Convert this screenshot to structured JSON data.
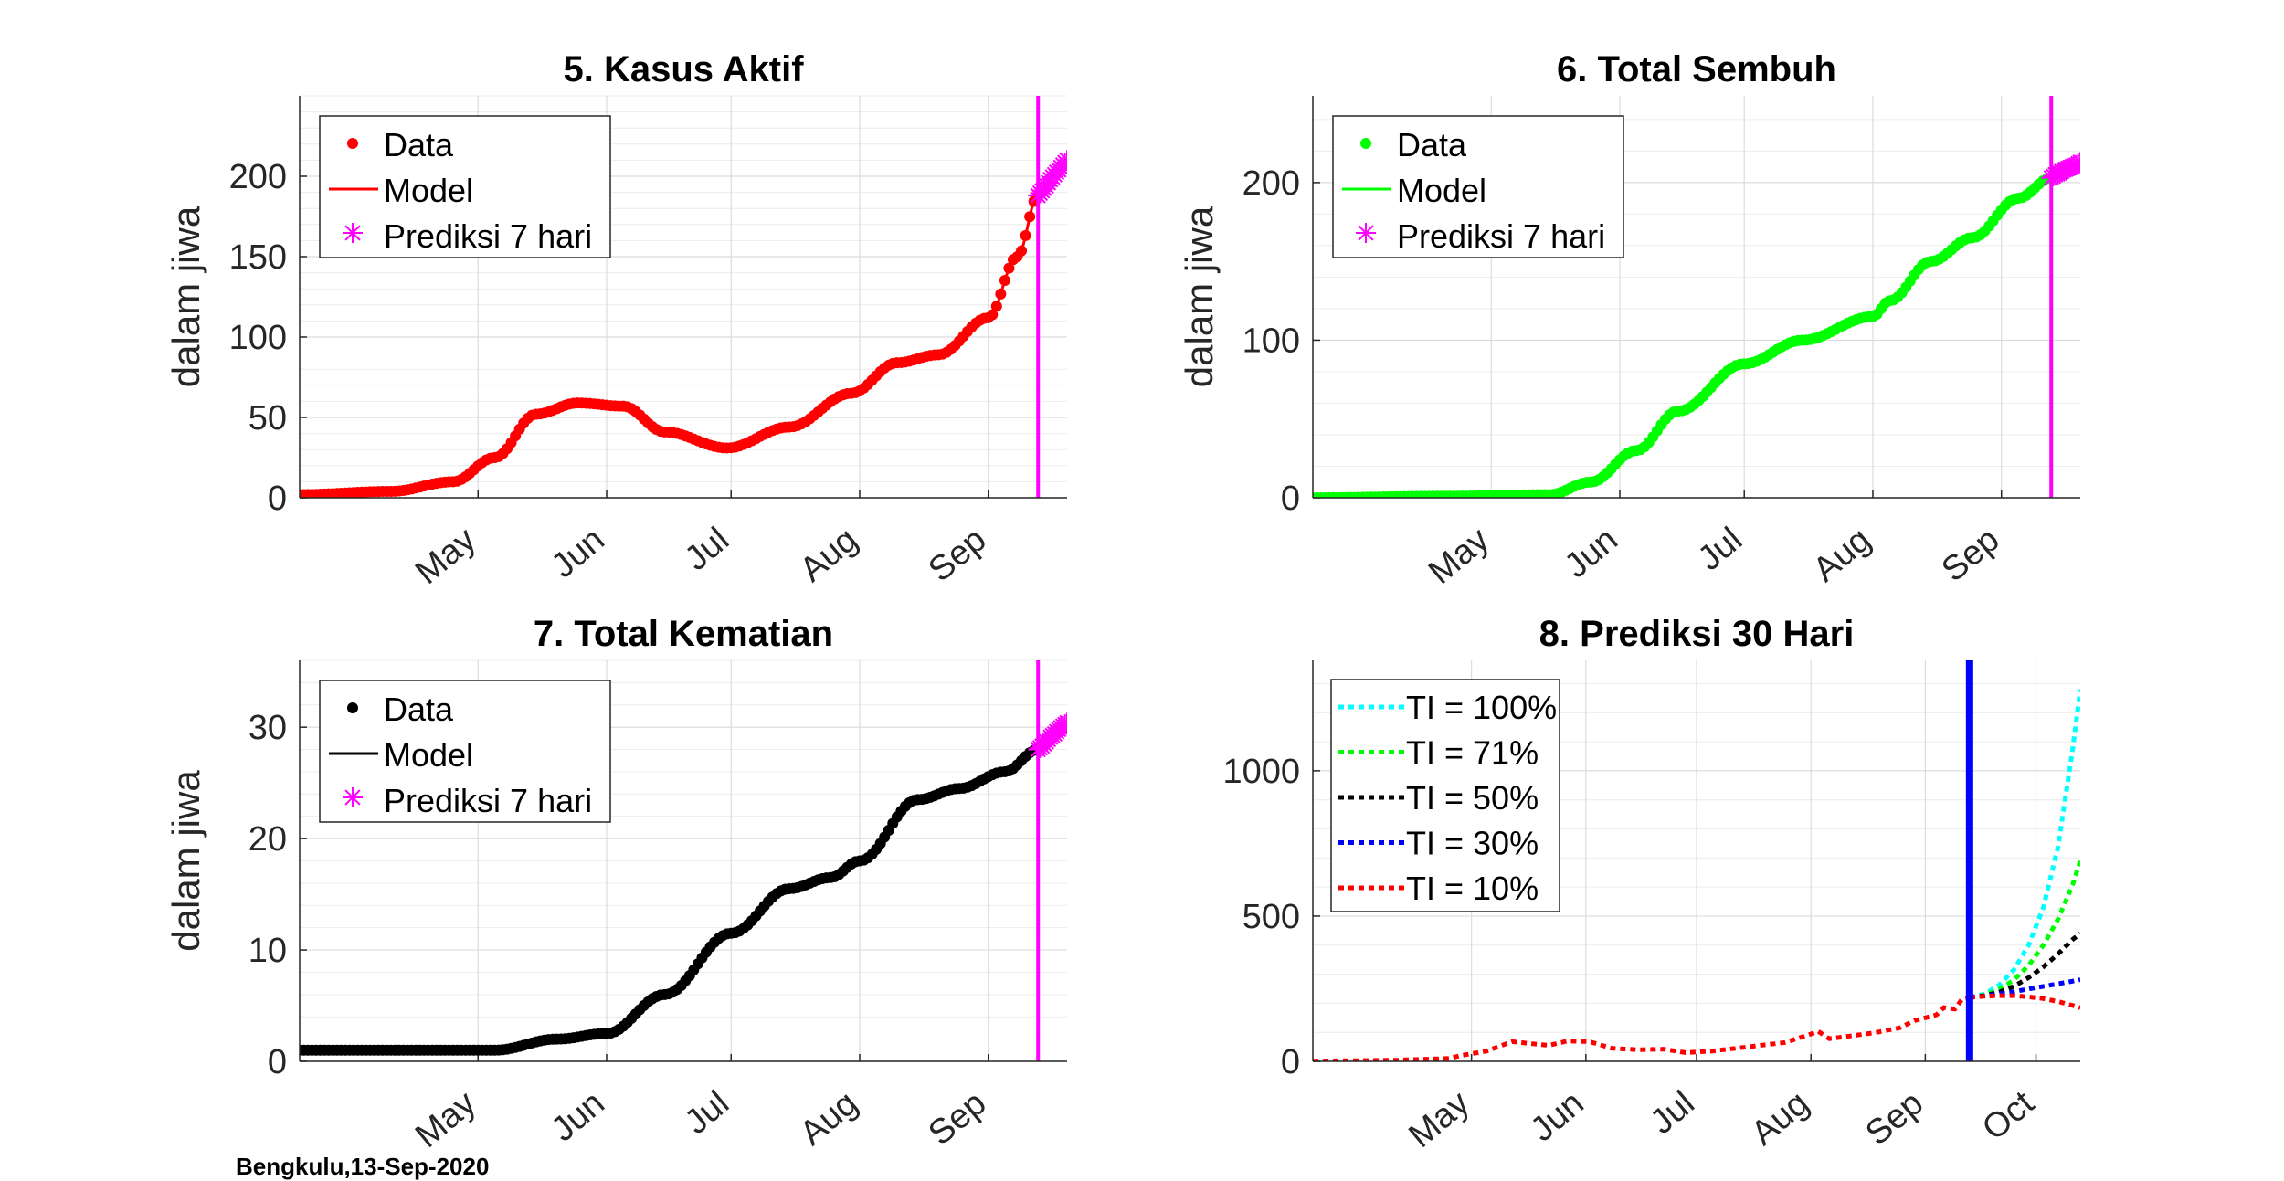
{
  "footer": "Bengkulu,13-Sep-2020",
  "chart_data": [
    {
      "type": "line",
      "title": "5. Kasus Aktif",
      "ylabel": "dalam jiwa",
      "xlabel": "",
      "x_range": [
        "2020-03-19",
        "2020-09-20"
      ],
      "ylim": [
        0,
        250
      ],
      "yticks": [
        0,
        50,
        100,
        150,
        200
      ],
      "xticks": [
        {
          "date": "2020-05-01",
          "label": "May"
        },
        {
          "date": "2020-06-01",
          "label": "Jun"
        },
        {
          "date": "2020-07-01",
          "label": "Jul"
        },
        {
          "date": "2020-08-01",
          "label": "Aug"
        },
        {
          "date": "2020-09-01",
          "label": "Sep"
        }
      ],
      "grid": true,
      "legend_position": "top-left",
      "color": "#ff0000",
      "marker_color": "#ff00ff",
      "vline_date": "2020-09-13",
      "vline_color": "#ff00ff",
      "series": [
        {
          "name": "Data",
          "style": "dot"
        },
        {
          "name": "Model",
          "style": "line"
        },
        {
          "name": "Prediksi 7 hari",
          "style": "star"
        }
      ],
      "data_anchors": [
        [
          "2020-03-19",
          2
        ],
        [
          "2020-04-10",
          4
        ],
        [
          "2020-04-25",
          10
        ],
        [
          "2020-05-05",
          25
        ],
        [
          "2020-05-15",
          52
        ],
        [
          "2020-05-25",
          59
        ],
        [
          "2020-06-05",
          57
        ],
        [
          "2020-06-15",
          41
        ],
        [
          "2020-06-30",
          31
        ],
        [
          "2020-07-15",
          44
        ],
        [
          "2020-07-30",
          65
        ],
        [
          "2020-08-10",
          84
        ],
        [
          "2020-08-20",
          89
        ],
        [
          "2020-09-01",
          112
        ],
        [
          "2020-09-08",
          150
        ],
        [
          "2020-09-13",
          188
        ]
      ],
      "prediction": [
        [
          "2020-09-13",
          188
        ],
        [
          "2020-09-14",
          191
        ],
        [
          "2020-09-15",
          194
        ],
        [
          "2020-09-16",
          198
        ],
        [
          "2020-09-17",
          201
        ],
        [
          "2020-09-18",
          204
        ],
        [
          "2020-09-19",
          207
        ],
        [
          "2020-09-20",
          210
        ]
      ]
    },
    {
      "type": "line",
      "title": "6. Total Sembuh",
      "ylabel": "dalam jiwa",
      "xlabel": "",
      "x_range": [
        "2020-03-19",
        "2020-09-20"
      ],
      "ylim": [
        0,
        255
      ],
      "yticks": [
        0,
        100,
        200
      ],
      "xticks": [
        {
          "date": "2020-05-01",
          "label": "May"
        },
        {
          "date": "2020-06-01",
          "label": "Jun"
        },
        {
          "date": "2020-07-01",
          "label": "Jul"
        },
        {
          "date": "2020-08-01",
          "label": "Aug"
        },
        {
          "date": "2020-09-01",
          "label": "Sep"
        }
      ],
      "grid": true,
      "legend_position": "top-left",
      "color": "#00ff00",
      "marker_color": "#ff00ff",
      "vline_date": "2020-09-13",
      "vline_color": "#ff00ff",
      "series": [
        {
          "name": "Data",
          "style": "dot"
        },
        {
          "name": "Model",
          "style": "line"
        },
        {
          "name": "Prediksi 7 hari",
          "style": "star"
        }
      ],
      "data_anchors": [
        [
          "2020-03-19",
          0
        ],
        [
          "2020-04-20",
          1
        ],
        [
          "2020-05-15",
          2
        ],
        [
          "2020-05-25",
          10
        ],
        [
          "2020-06-05",
          30
        ],
        [
          "2020-06-15",
          55
        ],
        [
          "2020-07-01",
          85
        ],
        [
          "2020-07-15",
          100
        ],
        [
          "2020-08-01",
          115
        ],
        [
          "2020-08-05",
          125
        ],
        [
          "2020-08-15",
          150
        ],
        [
          "2020-08-25",
          165
        ],
        [
          "2020-09-05",
          190
        ],
        [
          "2020-09-13",
          203
        ]
      ],
      "prediction": [
        [
          "2020-09-13",
          203
        ],
        [
          "2020-09-14",
          205
        ],
        [
          "2020-09-15",
          206
        ],
        [
          "2020-09-16",
          208
        ],
        [
          "2020-09-17",
          209
        ],
        [
          "2020-09-18",
          210
        ],
        [
          "2020-09-19",
          211
        ],
        [
          "2020-09-20",
          213
        ]
      ]
    },
    {
      "type": "line",
      "title": "7. Total Kematian",
      "ylabel": "dalam jiwa",
      "xlabel": "",
      "x_range": [
        "2020-03-19",
        "2020-09-20"
      ],
      "ylim": [
        0,
        36
      ],
      "yticks": [
        0,
        10,
        20,
        30
      ],
      "xticks": [
        {
          "date": "2020-05-01",
          "label": "May"
        },
        {
          "date": "2020-06-01",
          "label": "Jun"
        },
        {
          "date": "2020-07-01",
          "label": "Jul"
        },
        {
          "date": "2020-08-01",
          "label": "Aug"
        },
        {
          "date": "2020-09-01",
          "label": "Sep"
        }
      ],
      "grid": true,
      "legend_position": "top-left",
      "color": "#000000",
      "marker_color": "#ff00ff",
      "vline_date": "2020-09-13",
      "vline_color": "#ff00ff",
      "series": [
        {
          "name": "Data",
          "style": "dot"
        },
        {
          "name": "Model",
          "style": "line"
        },
        {
          "name": "Prediksi 7 hari",
          "style": "star"
        }
      ],
      "data_anchors": [
        [
          "2020-03-19",
          1
        ],
        [
          "2020-05-05",
          1
        ],
        [
          "2020-05-20",
          2
        ],
        [
          "2020-06-01",
          2.5
        ],
        [
          "2020-06-15",
          6
        ],
        [
          "2020-07-01",
          11.5
        ],
        [
          "2020-07-15",
          15.5
        ],
        [
          "2020-07-25",
          16.5
        ],
        [
          "2020-08-01",
          18
        ],
        [
          "2020-08-15",
          23.5
        ],
        [
          "2020-08-25",
          24.5
        ],
        [
          "2020-09-05",
          26
        ],
        [
          "2020-09-13",
          28
        ]
      ],
      "prediction": [
        [
          "2020-09-13",
          28
        ],
        [
          "2020-09-14",
          28.3
        ],
        [
          "2020-09-15",
          28.7
        ],
        [
          "2020-09-16",
          29.1
        ],
        [
          "2020-09-17",
          29.4
        ],
        [
          "2020-09-18",
          29.8
        ],
        [
          "2020-09-19",
          30.1
        ],
        [
          "2020-09-20",
          30.4
        ]
      ]
    },
    {
      "type": "line",
      "title": "8. Prediksi 30 Hari",
      "ylabel": "",
      "xlabel": "",
      "x_range": [
        "2020-03-19",
        "2020-10-13"
      ],
      "ylim": [
        0,
        1380
      ],
      "yticks": [
        0,
        500,
        1000
      ],
      "xticks": [
        {
          "date": "2020-05-01",
          "label": "May"
        },
        {
          "date": "2020-06-01",
          "label": "Jun"
        },
        {
          "date": "2020-07-01",
          "label": "Jul"
        },
        {
          "date": "2020-08-01",
          "label": "Aug"
        },
        {
          "date": "2020-09-01",
          "label": "Sep"
        },
        {
          "date": "2020-10-01",
          "label": "Oct"
        }
      ],
      "grid": true,
      "legend_position": "top-left",
      "vline_date": "2020-09-13",
      "vline_color": "#0000ff",
      "history": [
        [
          "2020-03-19",
          1
        ],
        [
          "2020-04-10",
          4
        ],
        [
          "2020-04-25",
          10
        ],
        [
          "2020-04-28",
          20
        ],
        [
          "2020-05-05",
          35
        ],
        [
          "2020-05-12",
          68
        ],
        [
          "2020-05-18",
          60
        ],
        [
          "2020-05-22",
          55
        ],
        [
          "2020-05-27",
          70
        ],
        [
          "2020-06-02",
          68
        ],
        [
          "2020-06-08",
          45
        ],
        [
          "2020-06-15",
          40
        ],
        [
          "2020-06-22",
          42
        ],
        [
          "2020-06-28",
          30
        ],
        [
          "2020-07-05",
          35
        ],
        [
          "2020-07-15",
          50
        ],
        [
          "2020-07-25",
          65
        ],
        [
          "2020-07-31",
          90
        ],
        [
          "2020-08-03",
          103
        ],
        [
          "2020-08-06",
          78
        ],
        [
          "2020-08-12",
          88
        ],
        [
          "2020-08-18",
          98
        ],
        [
          "2020-08-25",
          115
        ],
        [
          "2020-08-29",
          140
        ],
        [
          "2020-09-04",
          160
        ],
        [
          "2020-09-06",
          185
        ],
        [
          "2020-09-09",
          180
        ],
        [
          "2020-09-11",
          215
        ],
        [
          "2020-09-13",
          220
        ]
      ],
      "series": [
        {
          "name": "TI = 100%",
          "color": "#00ffff",
          "values": [
            [
              0,
              220
            ],
            [
              4,
              232
            ],
            [
              8,
              262
            ],
            [
              12,
              315
            ],
            [
              16,
              400
            ],
            [
              20,
              530
            ],
            [
              24,
              740
            ],
            [
              28,
              1080
            ],
            [
              30,
              1280
            ]
          ]
        },
        {
          "name": "TI = 71%",
          "color": "#00ff00",
          "values": [
            [
              0,
              220
            ],
            [
              4,
              228
            ],
            [
              8,
              248
            ],
            [
              12,
              280
            ],
            [
              16,
              330
            ],
            [
              20,
              400
            ],
            [
              24,
              490
            ],
            [
              28,
              610
            ],
            [
              30,
              690
            ]
          ]
        },
        {
          "name": "TI = 50%",
          "color": "#000000",
          "values": [
            [
              0,
              220
            ],
            [
              4,
              226
            ],
            [
              8,
              238
            ],
            [
              12,
              258
            ],
            [
              16,
              288
            ],
            [
              20,
              325
            ],
            [
              24,
              370
            ],
            [
              28,
              420
            ],
            [
              30,
              440
            ]
          ]
        },
        {
          "name": "TI = 30%",
          "color": "#0000ff",
          "values": [
            [
              0,
              220
            ],
            [
              4,
              225
            ],
            [
              8,
              232
            ],
            [
              12,
              240
            ],
            [
              16,
              249
            ],
            [
              20,
              258
            ],
            [
              24,
              267
            ],
            [
              28,
              276
            ],
            [
              30,
              281
            ]
          ]
        },
        {
          "name": "TI = 10%",
          "color": "#ff0000",
          "values": [
            [
              0,
              220
            ],
            [
              4,
              224
            ],
            [
              8,
              226
            ],
            [
              12,
              226
            ],
            [
              16,
              222
            ],
            [
              20,
              216
            ],
            [
              24,
              206
            ],
            [
              28,
              192
            ],
            [
              30,
              185
            ]
          ]
        }
      ]
    }
  ]
}
